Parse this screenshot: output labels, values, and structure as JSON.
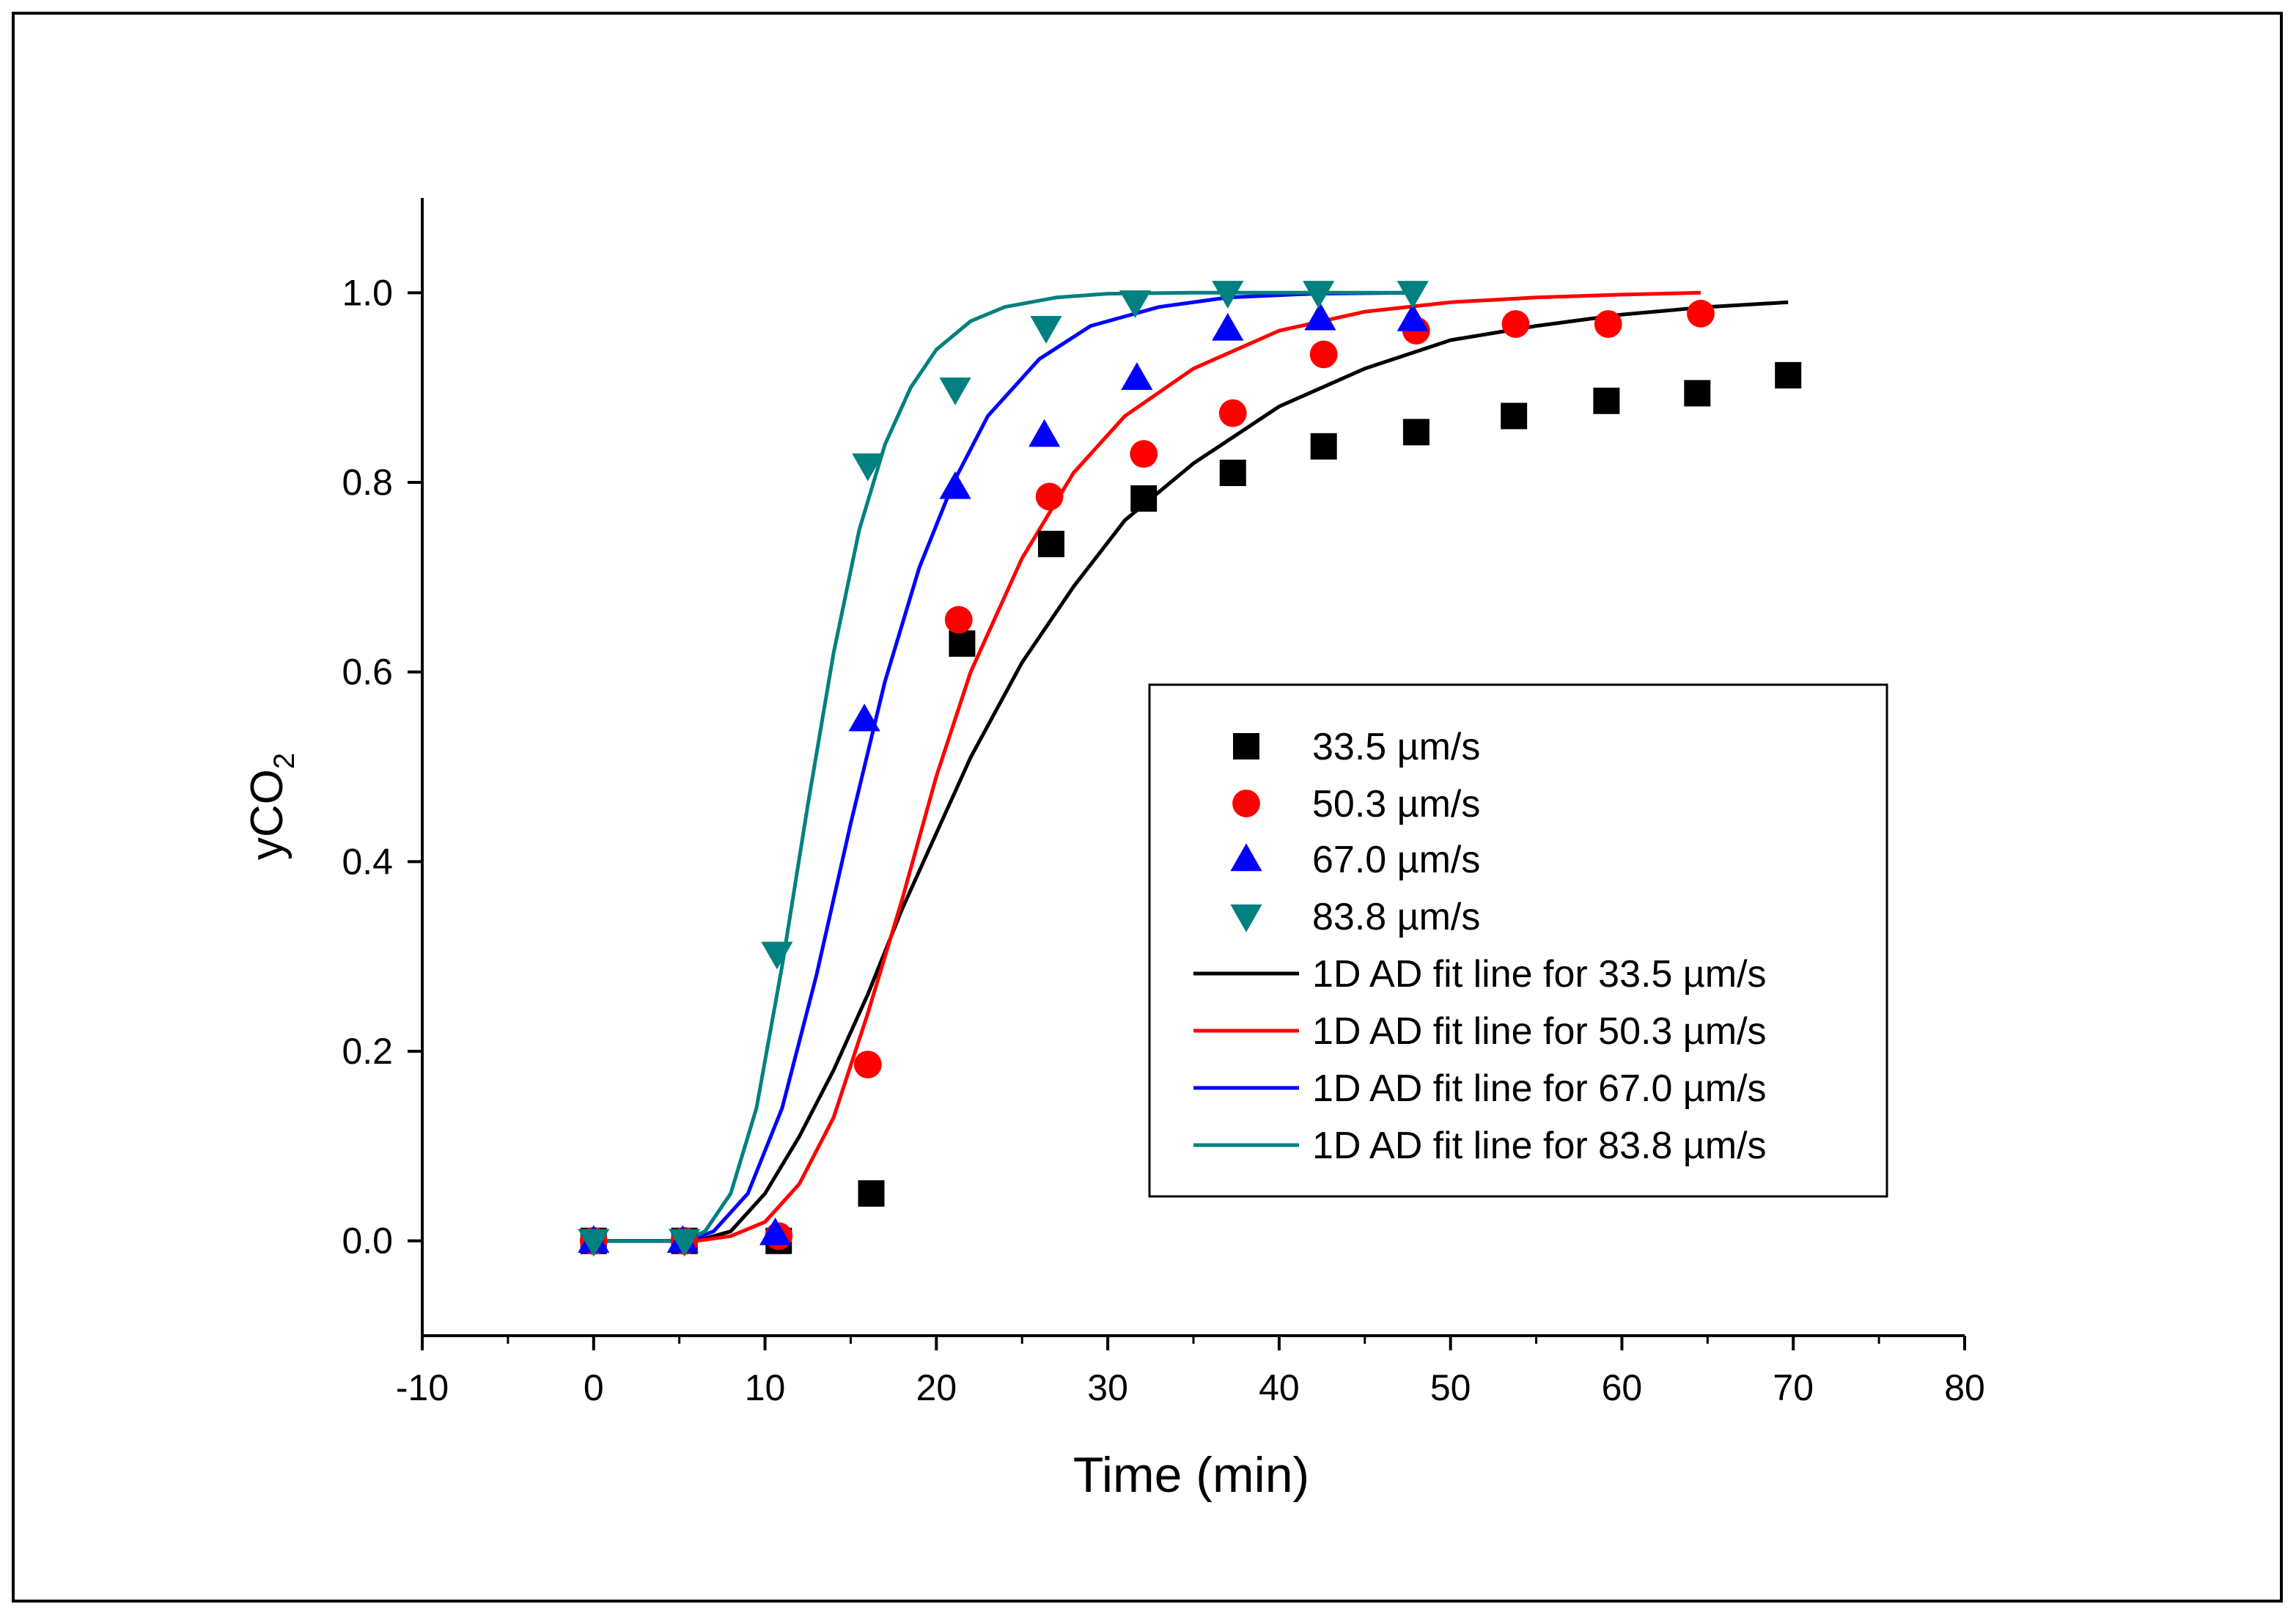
{
  "chart_data": {
    "type": "scatter",
    "title": "",
    "xlabel": "Time (min)",
    "ylabel": {
      "main": "yCO",
      "sub": "2"
    },
    "xlim": [
      -10,
      80
    ],
    "ylim": [
      -0.1,
      1.1
    ],
    "xticks": [
      -10,
      0,
      10,
      20,
      30,
      40,
      50,
      60,
      70,
      80
    ],
    "xtick_labels": [
      "-10",
      "0",
      "10",
      "20",
      "30",
      "40",
      "50",
      "60",
      "70",
      "80"
    ],
    "yticks": [
      0.0,
      0.2,
      0.4,
      0.6,
      0.8,
      1.0
    ],
    "ytick_labels": [
      "0.0",
      "0.2",
      "0.4",
      "0.6",
      "0.8",
      "1.0"
    ],
    "grid": false,
    "legend_position": "center-right",
    "series": [
      {
        "name": "33.5 µm/s",
        "marker": "square",
        "color": "#000000",
        "x": [
          0,
          5.3,
          10.8,
          16.2,
          21.5,
          26.7,
          32.1,
          37.3,
          42.6,
          48.0,
          53.7,
          59.1,
          64.4,
          69.7
        ],
        "y": [
          0.0,
          0.0,
          0.0,
          0.05,
          0.63,
          0.735,
          0.783,
          0.81,
          0.838,
          0.853,
          0.87,
          0.886,
          0.894,
          0.913
        ]
      },
      {
        "name": "50.3 µm/s",
        "marker": "circle",
        "color": "#ff0000",
        "x": [
          0,
          5.3,
          10.8,
          16.0,
          21.3,
          26.6,
          32.1,
          37.3,
          42.6,
          48.0,
          53.8,
          59.2,
          64.6
        ],
        "y": [
          0.0,
          0.0,
          0.005,
          0.186,
          0.655,
          0.785,
          0.83,
          0.873,
          0.935,
          0.96,
          0.967,
          0.967,
          0.978
        ]
      },
      {
        "name": "67.0 µm/s",
        "marker": "triangle-up",
        "color": "#0000ff",
        "x": [
          0,
          5.2,
          10.6,
          15.8,
          21.1,
          26.3,
          31.7,
          37.0,
          42.4,
          47.8
        ],
        "y": [
          0.0,
          0.0,
          0.008,
          0.55,
          0.795,
          0.85,
          0.91,
          0.962,
          0.973,
          0.972
        ]
      },
      {
        "name": "83.8 µm/s",
        "marker": "triangle-down",
        "color": "#008080",
        "x": [
          0,
          5.3,
          10.7,
          16.0,
          21.1,
          26.4,
          31.6,
          37.0,
          42.3,
          47.8
        ],
        "y": [
          0.0,
          0.0,
          0.303,
          0.818,
          0.898,
          0.963,
          0.99,
          1.0,
          1.0,
          1.0
        ]
      }
    ],
    "fit_lines": [
      {
        "name": "1D AD fit line for 33.5 µm/s",
        "color": "#000000",
        "t0": 6.0,
        "tmax": 69.7,
        "x": [
          6,
          8,
          10,
          12,
          14,
          16,
          18,
          20,
          22,
          25,
          28,
          31,
          35,
          40,
          45,
          50,
          55,
          60,
          65,
          69.7
        ],
        "y": [
          0.0,
          0.01,
          0.05,
          0.11,
          0.18,
          0.26,
          0.35,
          0.43,
          0.51,
          0.61,
          0.69,
          0.76,
          0.82,
          0.88,
          0.92,
          0.95,
          0.965,
          0.977,
          0.985,
          0.99
        ]
      },
      {
        "name": "1D AD fit line for 50.3 µm/s",
        "color": "#ff0000",
        "t0": 6.0,
        "tmax": 64.6,
        "x": [
          6,
          8,
          10,
          12,
          14,
          16,
          18,
          20,
          22,
          25,
          28,
          31,
          35,
          40,
          45,
          50,
          55,
          60,
          64.6
        ],
        "y": [
          0.0,
          0.005,
          0.02,
          0.06,
          0.13,
          0.24,
          0.36,
          0.49,
          0.6,
          0.72,
          0.81,
          0.87,
          0.92,
          0.96,
          0.98,
          0.99,
          0.995,
          0.998,
          1.0
        ]
      },
      {
        "name": "1D AD fit line for 67.0 µm/s",
        "color": "#0000ff",
        "t0": 5.5,
        "tmax": 47.8,
        "x": [
          5.5,
          7,
          9,
          11,
          13,
          15,
          17,
          19,
          21,
          23,
          26,
          29,
          33,
          37,
          42,
          47.8
        ],
        "y": [
          0.0,
          0.01,
          0.05,
          0.14,
          0.28,
          0.44,
          0.59,
          0.71,
          0.8,
          0.87,
          0.93,
          0.965,
          0.985,
          0.995,
          0.999,
          1.0
        ]
      },
      {
        "name": "1D AD fit line for 83.8 µm/s",
        "color": "#008080",
        "t0": 5.3,
        "tmax": 47.8,
        "x": [
          5.3,
          6.5,
          8,
          9.5,
          11,
          12.5,
          14,
          15.5,
          17,
          18.5,
          20,
          22,
          24,
          27,
          30,
          35,
          40,
          47.8
        ],
        "y": [
          0.0,
          0.01,
          0.05,
          0.14,
          0.29,
          0.46,
          0.62,
          0.75,
          0.84,
          0.9,
          0.94,
          0.97,
          0.985,
          0.995,
          0.999,
          1.0,
          1.0,
          1.0
        ]
      }
    ]
  }
}
